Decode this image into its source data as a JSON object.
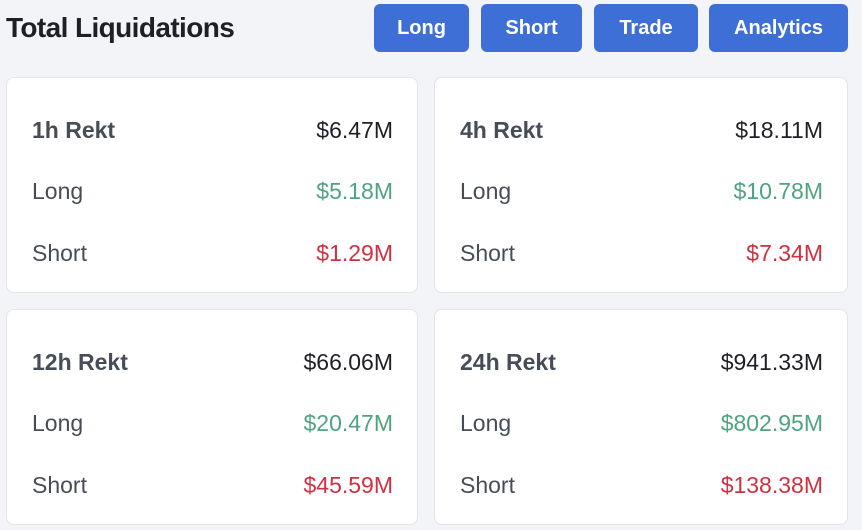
{
  "header": {
    "title": "Total Liquidations",
    "buttons": {
      "long": "Long",
      "short": "Short",
      "trade": "Trade",
      "analytics": "Analytics"
    }
  },
  "colors": {
    "button_bg": "#3d6fd6",
    "long_value": "#4fa37f",
    "short_value": "#d0303f"
  },
  "cards": [
    {
      "period": "1h Rekt",
      "total": "$6.47M",
      "long_label": "Long",
      "long": "$5.18M",
      "short_label": "Short",
      "short": "$1.29M"
    },
    {
      "period": "4h Rekt",
      "total": "$18.11M",
      "long_label": "Long",
      "long": "$10.78M",
      "short_label": "Short",
      "short": "$7.34M"
    },
    {
      "period": "12h Rekt",
      "total": "$66.06M",
      "long_label": "Long",
      "long": "$20.47M",
      "short_label": "Short",
      "short": "$45.59M"
    },
    {
      "period": "24h Rekt",
      "total": "$941.33M",
      "long_label": "Long",
      "long": "$802.95M",
      "short_label": "Short",
      "short": "$138.38M"
    }
  ]
}
